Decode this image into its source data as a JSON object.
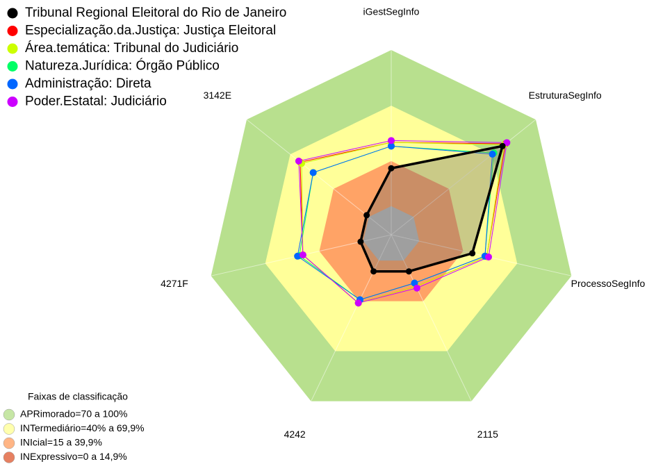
{
  "chart_data": {
    "type": "radar",
    "categories": [
      "iGestSegInfo",
      "EstruturaSegInfo",
      "ProcessoSegInfo",
      "2115",
      "4242",
      "4271F",
      "3142E"
    ],
    "rlim": [
      0,
      100
    ],
    "series": [
      {
        "name": "Tribunal Regional Eleitoral do Rio de Janeiro",
        "color": "#000000",
        "values": [
          36,
          77,
          45,
          22,
          22,
          17,
          17
        ]
      },
      {
        "name": "Especialização.da.Justiça: Justiça Eleitoral",
        "color": "#ff0000",
        "values": [
          50,
          79,
          53,
          31,
          41,
          49,
          63
        ]
      },
      {
        "name": "Área.temática: Tribunal do Judiciário",
        "color": "#ccff00",
        "values": [
          50,
          78,
          53,
          31,
          41,
          49,
          62
        ]
      },
      {
        "name": "Natureza.Jurídica: Órgão Público",
        "color": "#00ff66",
        "values": [
          48,
          71,
          52,
          29,
          39,
          51,
          54
        ]
      },
      {
        "name": "Administração: Direta",
        "color": "#0066ff",
        "values": [
          48,
          70,
          52,
          29,
          39,
          52,
          54
        ]
      },
      {
        "name": "Poder.Estatal: Judiciário",
        "color": "#cc00ff",
        "values": [
          51,
          80,
          54,
          32,
          41,
          49,
          64
        ]
      }
    ],
    "bands_title": "Faixas de classificação",
    "bands": [
      {
        "label": "APRimorado=70 a 100%",
        "from": 70,
        "to": 100,
        "color": "#b8e08e"
      },
      {
        "label": "INTermediário=40% a 69,9%",
        "from": 40,
        "to": 69.9,
        "color": "#ffff99"
      },
      {
        "label": "INIcial=15 a 39,9%",
        "from": 15,
        "to": 39.9,
        "color": "#ffa366"
      },
      {
        "label": "INExpressivo=0 a 14,9%",
        "from": 0,
        "to": 14.9,
        "color": "#e0603a"
      }
    ]
  }
}
